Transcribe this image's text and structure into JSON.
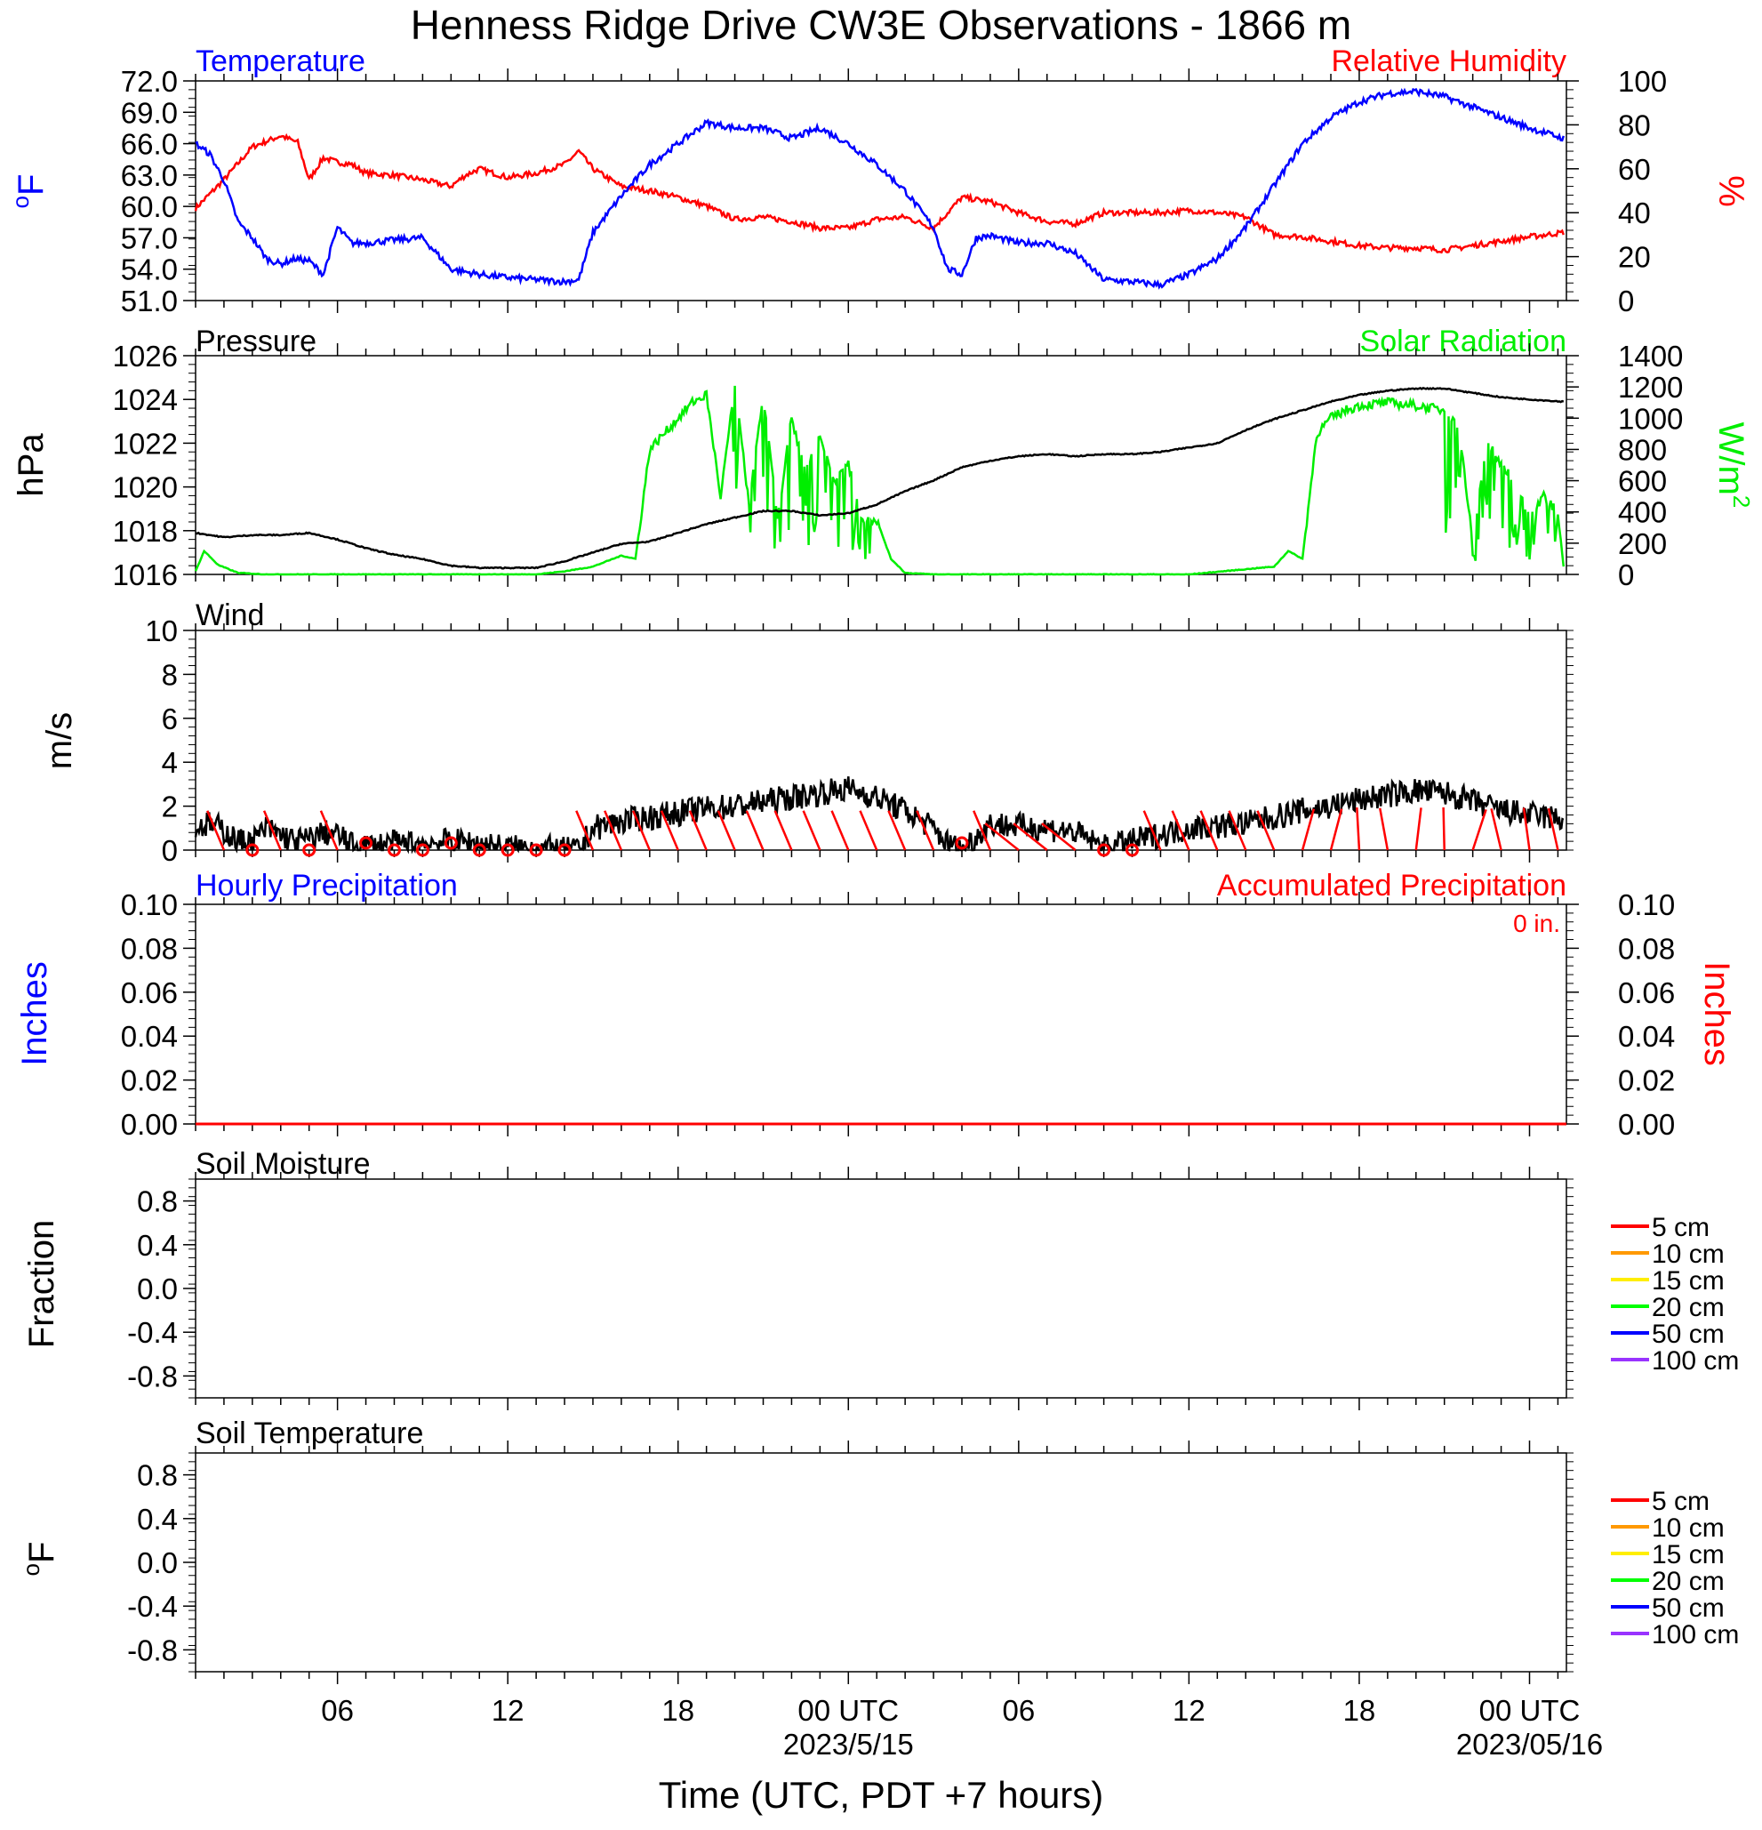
{
  "title": "Henness Ridge Drive CW3E Observations - 1866 m",
  "colors": {
    "temperature": "#0000ff",
    "humidity": "#ff0000",
    "pressure": "#000000",
    "solar": "#00ee00",
    "wind": "#000000",
    "wind_barb": "#ff0000",
    "precip_hourly": "#0000ff",
    "precip_accum": "#ff0000",
    "soil_depths": [
      "#ff0000",
      "#ff9900",
      "#ffee00",
      "#00ff00",
      "#0000ff",
      "#9933ff"
    ]
  },
  "x_axis": {
    "label": "Time (UTC, PDT +7 hours)",
    "range_hours": [
      0,
      48.3
    ],
    "ticks": [
      {
        "h": 5,
        "label": "06"
      },
      {
        "h": 11,
        "label": "12"
      },
      {
        "h": 17,
        "label": "18"
      },
      {
        "h": 23,
        "label": "00 UTC"
      },
      {
        "h": 29,
        "label": "06"
      },
      {
        "h": 35,
        "label": "12"
      },
      {
        "h": 41,
        "label": "18"
      },
      {
        "h": 47,
        "label": "00 UTC"
      }
    ],
    "dates": [
      {
        "h": 23,
        "label": "2023/5/15"
      },
      {
        "h": 47,
        "label": "2023/05/16"
      }
    ]
  },
  "panels": {
    "temperature": {
      "title_left": "Temperature",
      "title_right": "Relative Humidity",
      "ylabel_left": "F",
      "ylabel_left_sup": "o",
      "ylabel_right": "%",
      "left_ticks": [
        "51.0",
        "54.0",
        "57.0",
        "60.0",
        "63.0",
        "66.0",
        "69.0",
        "72.0"
      ],
      "right_ticks": [
        "0",
        "20",
        "40",
        "60",
        "80",
        "100"
      ]
    },
    "pressure": {
      "title_left": "Pressure",
      "title_right": "Solar Radiation",
      "ylabel_left": "hPa",
      "ylabel_right": "W/m",
      "ylabel_right_sup": "2",
      "left_ticks": [
        "1016",
        "1018",
        "1020",
        "1022",
        "1024",
        "1026"
      ],
      "right_ticks": [
        "0",
        "200",
        "400",
        "600",
        "800",
        "1000",
        "1200",
        "1400"
      ]
    },
    "wind": {
      "title_left": "Wind",
      "ylabel_left": "m/s",
      "left_ticks": [
        "0",
        "2",
        "4",
        "6",
        "8",
        "10"
      ]
    },
    "precip": {
      "title_left": "Hourly Precipitation",
      "title_right": "Accumulated Precipitation",
      "accum_total": "0 in.",
      "ylabel_left": "Inches",
      "ylabel_right": "Inches",
      "left_ticks": [
        "0.00",
        "0.02",
        "0.04",
        "0.06",
        "0.08",
        "0.10"
      ],
      "right_ticks": [
        "0.00",
        "0.02",
        "0.04",
        "0.06",
        "0.08",
        "0.10"
      ]
    },
    "soil_moisture": {
      "title_left": "Soil Moisture",
      "ylabel_left": "Fraction",
      "left_ticks": [
        "-0.8",
        "-0.4",
        "0.0",
        "0.4",
        "0.8"
      ],
      "legend": [
        "5 cm",
        "10 cm",
        "15 cm",
        "20 cm",
        "50 cm",
        "100 cm"
      ]
    },
    "soil_temp": {
      "title_left": "Soil Temperature",
      "ylabel_left": "F",
      "ylabel_left_sup": "o",
      "left_ticks": [
        "-0.8",
        "-0.4",
        "0.0",
        "0.4",
        "0.8"
      ],
      "legend": [
        "5 cm",
        "10 cm",
        "15 cm",
        "20 cm",
        "50 cm",
        "100 cm"
      ]
    }
  },
  "chart_data": [
    {
      "type": "line",
      "title": "Temperature / Relative Humidity",
      "xlabel": "Time (UTC, PDT +7 hours)",
      "ylim_left": [
        51,
        72
      ],
      "ylim_right": [
        0,
        100
      ],
      "series": [
        {
          "name": "Temperature",
          "axis": "left",
          "unit": "F",
          "x": [
            0,
            0.5,
            1,
            1.5,
            2,
            2.5,
            3,
            3.5,
            4,
            4.5,
            5,
            5.5,
            6,
            7,
            8,
            9,
            10,
            11,
            12,
            13,
            13.5,
            14,
            15,
            16,
            17,
            18,
            19,
            20,
            21,
            22,
            23,
            24,
            25,
            26,
            26.5,
            27,
            27.5,
            28,
            29,
            30,
            31,
            32,
            33,
            34,
            35,
            36,
            37,
            38,
            39,
            40,
            41,
            42,
            43,
            44,
            45,
            46,
            47,
            48.2
          ],
          "y": [
            66.0,
            65.0,
            62.5,
            58.5,
            57.0,
            55.0,
            54.5,
            55.0,
            54.8,
            53.5,
            58.0,
            56.5,
            56.5,
            56.8,
            57.0,
            54.0,
            53.5,
            53.2,
            53.0,
            52.8,
            53.0,
            57.5,
            61.0,
            64.0,
            66.0,
            68.0,
            67.5,
            67.5,
            66.5,
            67.5,
            66.0,
            64.0,
            61.5,
            58.0,
            54.0,
            53.5,
            57.0,
            57.2,
            56.5,
            56.5,
            55.5,
            53.0,
            52.8,
            52.5,
            53.5,
            55.0,
            58.0,
            62.0,
            66.0,
            68.5,
            70.0,
            70.8,
            71.0,
            70.5,
            69.5,
            68.5,
            67.5,
            66.5
          ]
        },
        {
          "name": "Relative Humidity",
          "axis": "right",
          "unit": "%",
          "x": [
            0,
            1,
            2,
            3,
            3.6,
            4,
            4.5,
            5,
            5.5,
            6,
            7,
            8,
            9,
            9.5,
            10,
            11,
            12,
            13,
            13.5,
            14,
            15,
            16,
            17,
            18,
            19,
            20,
            21,
            22,
            23,
            24,
            25,
            26,
            27,
            28,
            29,
            30,
            31,
            32,
            33,
            34,
            35,
            36,
            37,
            38,
            39,
            40,
            41,
            42,
            43,
            44,
            45,
            46,
            47,
            48.2
          ],
          "y": [
            42,
            55,
            70,
            75,
            72,
            55,
            65,
            63,
            62,
            58,
            57,
            55,
            52,
            57,
            60,
            56,
            58,
            62,
            68,
            60,
            52,
            50,
            47,
            43,
            37,
            38,
            36,
            33,
            33,
            37,
            38,
            33,
            47,
            45,
            40,
            36,
            35,
            40,
            40,
            40,
            41,
            40,
            38,
            30,
            29,
            27,
            25,
            24,
            24,
            23,
            25,
            27,
            29,
            31
          ]
        }
      ]
    },
    {
      "type": "line",
      "title": "Pressure / Solar Radiation",
      "ylim_left": [
        1016,
        1026
      ],
      "ylim_right": [
        0,
        1400
      ],
      "series": [
        {
          "name": "Pressure",
          "axis": "left",
          "unit": "hPa",
          "x": [
            0,
            1,
            2,
            3,
            4,
            5,
            6,
            7,
            8,
            9,
            10,
            11,
            12,
            13,
            14,
            15,
            16,
            17,
            18,
            19,
            20,
            21,
            22,
            23,
            24,
            25,
            26,
            27,
            28,
            29,
            30,
            31,
            32,
            33,
            34,
            35,
            36,
            37,
            38,
            39,
            40,
            41,
            42,
            43,
            44,
            45,
            46,
            47,
            48.2
          ],
          "y": [
            1017.9,
            1017.7,
            1017.8,
            1017.8,
            1017.9,
            1017.6,
            1017.2,
            1016.9,
            1016.7,
            1016.4,
            1016.3,
            1016.3,
            1016.3,
            1016.6,
            1017.0,
            1017.4,
            1017.5,
            1017.9,
            1018.3,
            1018.6,
            1018.9,
            1018.9,
            1018.7,
            1018.8,
            1019.2,
            1019.8,
            1020.3,
            1020.9,
            1021.2,
            1021.4,
            1021.5,
            1021.4,
            1021.5,
            1021.5,
            1021.6,
            1021.8,
            1022.0,
            1022.6,
            1023.1,
            1023.5,
            1023.9,
            1024.2,
            1024.4,
            1024.5,
            1024.5,
            1024.3,
            1024.1,
            1024.0,
            1023.9
          ]
        },
        {
          "name": "Solar Radiation",
          "axis": "right",
          "unit": "W/m2",
          "x": [
            0,
            0.3,
            0.8,
            1.5,
            2.5,
            5,
            10,
            12,
            13,
            14,
            15,
            15.5,
            16,
            16.5,
            17,
            17.5,
            18,
            18.5,
            19,
            19.5,
            20,
            20.5,
            21,
            21.5,
            22,
            22.5,
            23,
            23.5,
            24,
            24.5,
            25,
            26,
            30,
            35,
            38,
            38.5,
            39,
            39.5,
            40,
            40.5,
            41,
            42,
            43,
            44,
            44.5,
            45,
            45.5,
            46,
            46.5,
            47,
            47.5,
            48,
            48.2
          ],
          "y": [
            20,
            150,
            60,
            10,
            0,
            0,
            0,
            0,
            20,
            50,
            120,
            100,
            800,
            900,
            1000,
            1100,
            1150,
            500,
            1200,
            450,
            1150,
            350,
            1000,
            650,
            900,
            600,
            700,
            350,
            350,
            100,
            10,
            0,
            0,
            0,
            50,
            150,
            100,
            900,
            1000,
            1050,
            1080,
            1100,
            1080,
            1050,
            950,
            200,
            850,
            700,
            600,
            350,
            500,
            400,
            50
          ]
        }
      ]
    },
    {
      "type": "line",
      "title": "Wind",
      "ylim": [
        0,
        10
      ],
      "series": [
        {
          "name": "Wind",
          "unit": "m/s",
          "x": [
            0,
            0.5,
            1,
            1.5,
            2,
            2.5,
            3,
            3.5,
            4,
            4.5,
            5,
            5.5,
            6,
            7,
            8,
            9,
            10,
            11,
            12,
            13,
            13.5,
            14,
            15,
            16,
            17,
            18,
            19,
            20,
            21,
            22,
            23,
            24,
            25,
            26,
            26.5,
            27,
            28,
            29,
            30,
            31,
            32,
            33,
            34,
            35,
            36,
            37,
            38,
            39,
            40,
            41,
            42,
            43,
            44,
            45,
            46,
            47,
            48.2
          ],
          "y": [
            1.0,
            1.2,
            0.9,
            0.4,
            0.4,
            1.0,
            0.7,
            0.4,
            0.5,
            0.8,
            0.7,
            0.2,
            0.2,
            0.3,
            0.3,
            0.4,
            0.3,
            0.1,
            0.1,
            0.0,
            0.0,
            1.0,
            1.3,
            1.5,
            1.7,
            1.9,
            2.0,
            2.2,
            2.4,
            2.6,
            2.8,
            2.4,
            1.8,
            1.0,
            0.3,
            0.0,
            1.2,
            1.1,
            1.0,
            0.8,
            0.1,
            0.4,
            0.7,
            1.0,
            1.1,
            1.2,
            1.5,
            1.8,
            2.0,
            2.3,
            2.5,
            2.7,
            2.6,
            2.2,
            1.8,
            1.6,
            1.4
          ]
        }
      ]
    },
    {
      "type": "line",
      "title": "Hourly Precipitation / Accumulated Precipitation",
      "ylim_left": [
        0,
        0.1
      ],
      "ylim_right": [
        0,
        0.1
      ],
      "series": [
        {
          "name": "Hourly Precipitation",
          "axis": "left",
          "x": [
            0,
            48.2
          ],
          "y": [
            0,
            0
          ]
        },
        {
          "name": "Accumulated Precipitation",
          "axis": "right",
          "x": [
            0,
            48.2
          ],
          "y": [
            0,
            0
          ]
        }
      ]
    },
    {
      "type": "line",
      "title": "Soil Moisture",
      "ylim": [
        -1,
        1
      ],
      "series": []
    },
    {
      "type": "line",
      "title": "Soil Temperature",
      "ylim": [
        -1,
        1
      ],
      "series": []
    }
  ]
}
